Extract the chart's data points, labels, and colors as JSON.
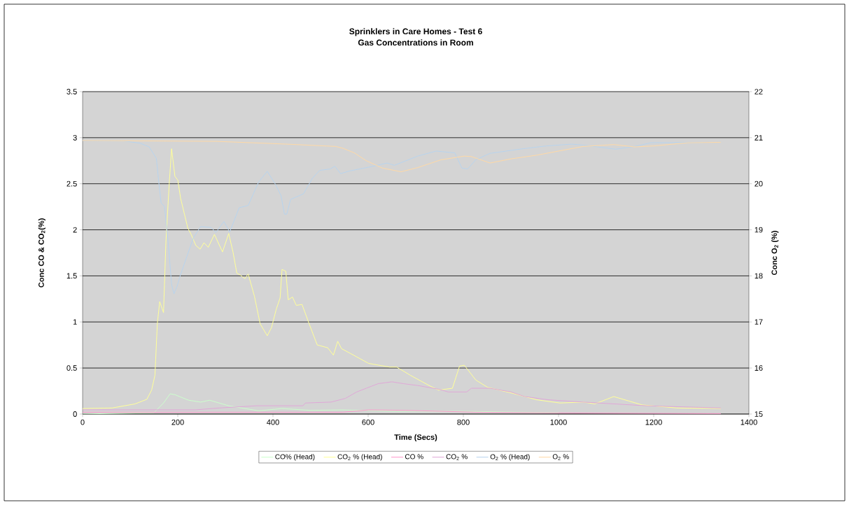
{
  "chart_data": {
    "type": "line",
    "title": "Sprinklers in Care Homes - Test 6",
    "subtitle": "Gas Concentrations in Room",
    "xlabel": "Time (Secs)",
    "ylabel": "Conc CO & CO$_{2}$(%)",
    "y2label": "Conc O$_{2}$ (%)",
    "xlim": [
      0,
      1400
    ],
    "xticks": [
      0,
      200,
      400,
      600,
      800,
      1000,
      1200,
      1400
    ],
    "ylim": [
      0,
      3.5
    ],
    "yticks": [
      0,
      0.5,
      1,
      1.5,
      2,
      2.5,
      3,
      3.5
    ],
    "y2lim": [
      15,
      22
    ],
    "y2ticks": [
      15,
      16,
      17,
      18,
      19,
      20,
      21,
      22
    ],
    "grid": "y",
    "legend": "bottom",
    "series": [
      {
        "name": "CO% (Head)",
        "color": "#ccffcc",
        "x": [
          0,
          150,
          170,
          184,
          194,
          223,
          248,
          267,
          307,
          370,
          419,
          478,
          546,
          660,
          800,
          1000
        ],
        "values": [
          0,
          0.015,
          0.12,
          0.22,
          0.21,
          0.15,
          0.13,
          0.15,
          0.09,
          0.035,
          0.06,
          0.04,
          0.045,
          0.03,
          0.03,
          0.015
        ]
      },
      {
        "name": "CO$_{2}$ % (Head)",
        "color": "#ffff99",
        "x": [
          0,
          62,
          110,
          135,
          145,
          152,
          157,
          162,
          170,
          175,
          182,
          187,
          194,
          200,
          206,
          214,
          221,
          228,
          238,
          247,
          255,
          264,
          277,
          285,
          294,
          307,
          316,
          324,
          331,
          341,
          348,
          361,
          373,
          388,
          397,
          407,
          415,
          419,
          427,
          432,
          441,
          449,
          461,
          476,
          493,
          515,
          527,
          536,
          544,
          562,
          601,
          645,
          660,
          689,
          728,
          748,
          777,
          792,
          802,
          826,
          851,
          900,
          954,
          1003,
          1052,
          1076,
          1116,
          1175,
          1248,
          1341
        ],
        "values": [
          0.06,
          0.066,
          0.11,
          0.16,
          0.26,
          0.42,
          0.98,
          1.22,
          1.1,
          1.86,
          2.5,
          2.88,
          2.58,
          2.54,
          2.34,
          2.17,
          2.02,
          1.95,
          1.83,
          1.79,
          1.86,
          1.81,
          1.95,
          1.86,
          1.76,
          1.96,
          1.76,
          1.53,
          1.51,
          1.47,
          1.52,
          1.28,
          0.98,
          0.85,
          0.94,
          1.14,
          1.26,
          1.57,
          1.55,
          1.24,
          1.27,
          1.18,
          1.19,
          0.98,
          0.75,
          0.72,
          0.64,
          0.79,
          0.71,
          0.66,
          0.55,
          0.51,
          0.51,
          0.42,
          0.31,
          0.26,
          0.28,
          0.52,
          0.53,
          0.37,
          0.29,
          0.23,
          0.155,
          0.12,
          0.13,
          0.11,
          0.19,
          0.1,
          0.066,
          0.06
        ]
      },
      {
        "name": "CO %",
        "color": "#ff99cc",
        "x": [
          0,
          546,
          601,
          679,
          826,
          1000,
          1341
        ],
        "values": [
          0.02,
          0.02,
          0.045,
          0.04,
          0.02,
          0.012,
          0.005
        ]
      },
      {
        "name": "CO$_{2}$  %",
        "color": "#e0a8d8",
        "x": [
          0,
          238,
          287,
          366,
          463,
          468,
          522,
          552,
          576,
          596,
          621,
          650,
          674,
          704,
          748,
          768,
          807,
          817,
          856,
          900,
          929,
          978,
          1052,
          1184,
          1341
        ],
        "values": [
          0.046,
          0.046,
          0.066,
          0.09,
          0.09,
          0.12,
          0.13,
          0.17,
          0.24,
          0.28,
          0.33,
          0.35,
          0.33,
          0.31,
          0.27,
          0.24,
          0.24,
          0.28,
          0.28,
          0.24,
          0.19,
          0.155,
          0.13,
          0.09,
          0.066
        ]
      },
      {
        "name": "O$_{2}$  % (Head)",
        "color": "#b8d4ee",
        "axis": "y2",
        "x": [
          0,
          86,
          121,
          140,
          155,
          160,
          165,
          172,
          179,
          187,
          192,
          199,
          204,
          219,
          233,
          248,
          270,
          280,
          297,
          309,
          329,
          341,
          348,
          370,
          388,
          405,
          417,
          424,
          429,
          437,
          464,
          483,
          498,
          520,
          530,
          542,
          562,
          606,
          640,
          655,
          704,
          743,
          782,
          797,
          809,
          826,
          856,
          925,
          974,
          1027,
          1052,
          1120,
          1160,
          1194,
          1341
        ],
        "values": [
          20.94,
          20.93,
          20.88,
          20.8,
          20.55,
          20.04,
          19.58,
          19.51,
          18.83,
          17.81,
          17.61,
          17.79,
          17.97,
          18.42,
          18.83,
          19.07,
          19.05,
          18.94,
          19.18,
          18.95,
          19.48,
          19.51,
          19.53,
          20.04,
          20.27,
          19.99,
          19.74,
          19.34,
          19.34,
          19.66,
          19.78,
          20.12,
          20.29,
          20.32,
          20.38,
          20.22,
          20.28,
          20.37,
          20.45,
          20.4,
          20.6,
          20.71,
          20.67,
          20.34,
          20.32,
          20.52,
          20.66,
          20.76,
          20.82,
          20.86,
          20.84,
          20.75,
          20.81,
          20.89,
          20.9
        ]
      },
      {
        "name": "O$_{2}$  %",
        "color": "#ffd9a6",
        "axis": "y2",
        "x": [
          0,
          282,
          429,
          532,
          547,
          571,
          596,
          630,
          669,
          704,
          753,
          802,
          817,
          856,
          900,
          954,
          1052,
          1116,
          1160,
          1199,
          1272,
          1341
        ],
        "values": [
          20.94,
          20.92,
          20.86,
          20.81,
          20.77,
          20.67,
          20.5,
          20.34,
          20.26,
          20.35,
          20.52,
          20.6,
          20.59,
          20.45,
          20.54,
          20.62,
          20.81,
          20.85,
          20.8,
          20.82,
          20.89,
          20.9
        ]
      }
    ]
  }
}
